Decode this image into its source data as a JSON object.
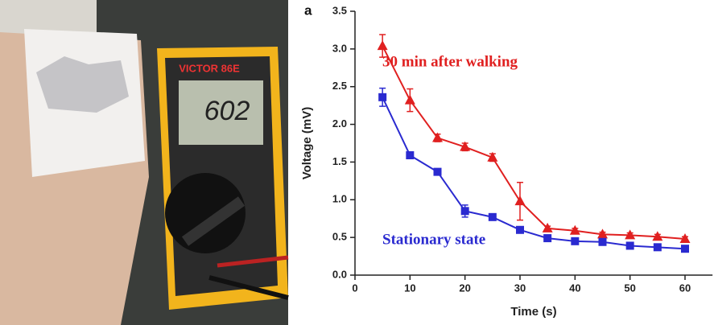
{
  "photo": {
    "brand": "VICTOR 86E",
    "reading": "602"
  },
  "chart_data": {
    "type": "line",
    "panel_label": "a",
    "x_label": "Time (s)",
    "y_label": "Voltage (mV)",
    "xlim": [
      0,
      65
    ],
    "xticks": [
      0,
      10,
      20,
      30,
      40,
      50,
      60
    ],
    "ylim": [
      0,
      3.5
    ],
    "yticks": [
      {
        "value": 0,
        "label": "0.0"
      },
      0.5,
      {
        "value": 1,
        "label": "1.0"
      },
      1.5,
      {
        "value": 2,
        "label": "2.0"
      },
      2.5,
      {
        "value": 3,
        "label": "3.0"
      },
      3.5
    ],
    "x": [
      5,
      10,
      15,
      20,
      25,
      30,
      35,
      40,
      45,
      50,
      55,
      60
    ],
    "series": [
      {
        "name": "30 min after walking",
        "color": "#e02020",
        "marker": "triangle",
        "values": [
          3.04,
          2.32,
          1.82,
          1.7,
          1.56,
          0.98,
          0.62,
          0.59,
          0.54,
          0.53,
          0.51,
          0.48
        ],
        "errors": [
          0.15,
          0.15,
          0.05,
          0.05,
          0.05,
          0.25,
          0.03,
          0.03,
          0.03,
          0.03,
          0.03,
          0.03
        ]
      },
      {
        "name": "Stationary state",
        "color": "#2a2ad0",
        "marker": "square",
        "values": [
          2.36,
          1.59,
          1.37,
          0.85,
          0.77,
          0.6,
          0.49,
          0.45,
          0.44,
          0.39,
          0.37,
          0.35
        ],
        "errors": [
          0.12,
          0.03,
          0.03,
          0.08,
          0.03,
          0.03,
          0.03,
          0.03,
          0.03,
          0.03,
          0.03,
          0.03
        ]
      }
    ]
  }
}
